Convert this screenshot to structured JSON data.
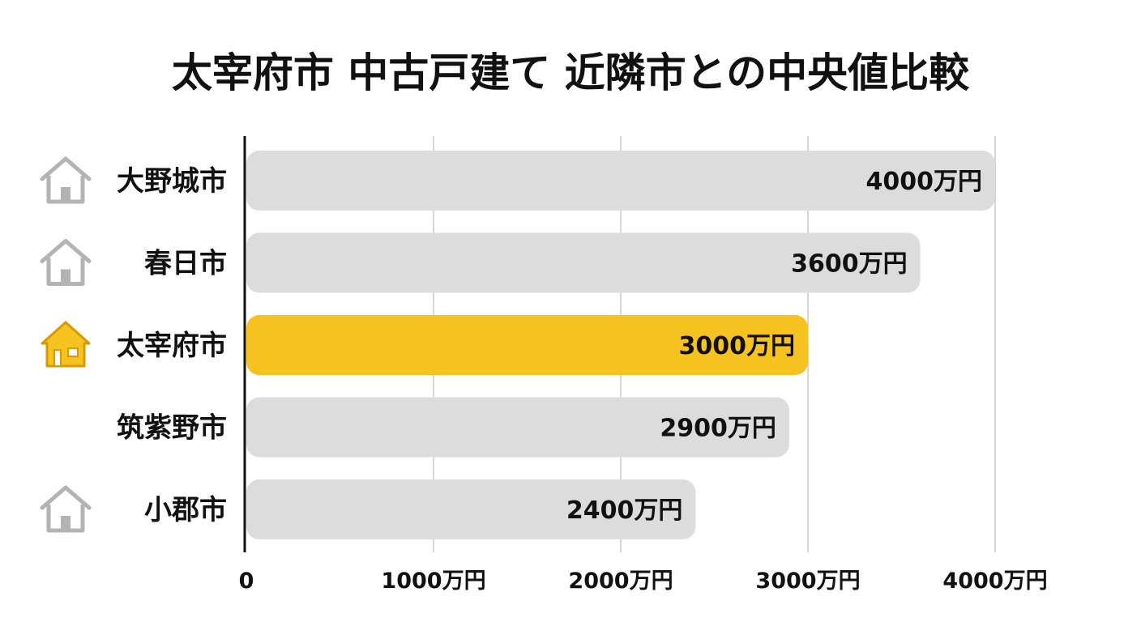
{
  "chart_data": {
    "type": "bar",
    "orientation": "horizontal",
    "title": "太宰府市 中古戸建て 近隣市との中央値比較",
    "categories": [
      "大野城市",
      "春日市",
      "太宰府市",
      "筑紫野市",
      "小郡市"
    ],
    "values": [
      4000,
      3600,
      3000,
      2900,
      2400
    ],
    "data_labels": [
      "4000万円",
      "3600万円",
      "3000万円",
      "2900万円",
      "2400万円"
    ],
    "highlight_category": "太宰府市",
    "category_icons": [
      "house-icon",
      "house-icon",
      "house-icon-highlight",
      "",
      "house-icon"
    ],
    "xlim": [
      0,
      4000
    ],
    "xticks": [
      0,
      1000,
      2000,
      3000,
      4000
    ],
    "xtick_labels": [
      "0",
      "1000万円",
      "2000万円",
      "3000万円",
      "4000万円"
    ],
    "grid": true,
    "legend": "none",
    "colors": {
      "bar": "#dcdcdc",
      "highlight": "#f5c21f",
      "icon": "#b3b3b3",
      "icon_highlight": "#f5c21f",
      "icon_highlight_stroke": "#d99a00",
      "gridline": "#c8c8c8",
      "axis": "#111111",
      "text": "#111111"
    }
  }
}
